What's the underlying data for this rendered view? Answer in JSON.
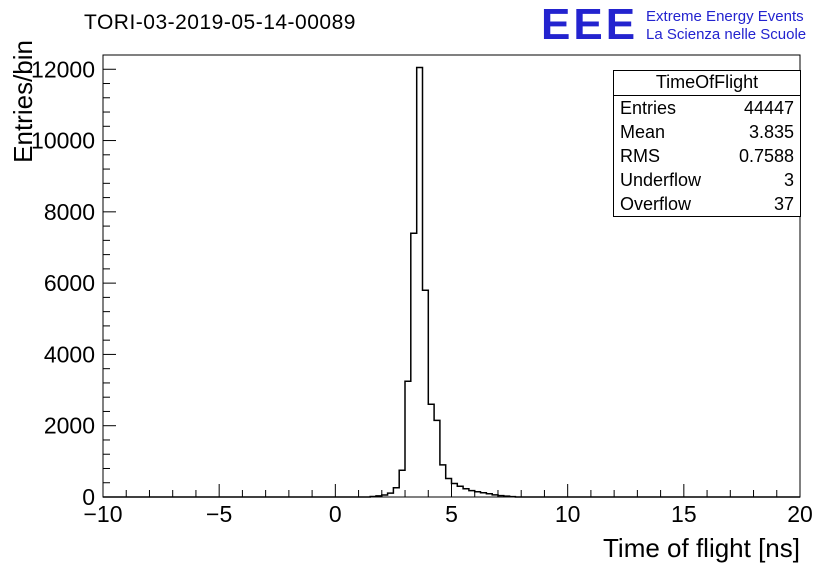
{
  "title": "TORI-03-2019-05-14-00089",
  "logo": {
    "text": "EEE",
    "line1": "Extreme Energy Events",
    "line2": "La Scienza nelle Scuole",
    "color": "#2323cf"
  },
  "stats": {
    "title": "TimeOfFlight",
    "rows": [
      {
        "label": "Entries",
        "value": "44447"
      },
      {
        "label": "Mean",
        "value": "3.835"
      },
      {
        "label": "RMS",
        "value": "0.7588"
      },
      {
        "label": "Underflow",
        "value": "3"
      },
      {
        "label": "Overflow",
        "value": "37"
      }
    ]
  },
  "chart_data": {
    "type": "bar",
    "title": "TORI-03-2019-05-14-00089",
    "xlabel": "Time of flight [ns]",
    "ylabel": "Entries/bin",
    "xlim": [
      -10,
      20
    ],
    "ylim": [
      0,
      12400
    ],
    "x_ticks": [
      -10,
      -5,
      0,
      5,
      10,
      15,
      20
    ],
    "x_tick_labels": [
      "−10",
      "−5",
      "0",
      "5",
      "10",
      "15",
      "20"
    ],
    "x_minor_step": 1,
    "y_ticks": [
      0,
      2000,
      4000,
      6000,
      8000,
      10000,
      12000
    ],
    "y_tick_labels": [
      "0",
      "2000",
      "4000",
      "6000",
      "8000",
      "10000",
      "12000"
    ],
    "y_minor_step": 400,
    "bin_width": 0.25,
    "bins": [
      [
        1.5,
        15
      ],
      [
        1.75,
        30
      ],
      [
        2.0,
        55
      ],
      [
        2.25,
        110
      ],
      [
        2.5,
        260
      ],
      [
        2.75,
        750
      ],
      [
        3.0,
        3250
      ],
      [
        3.25,
        7400
      ],
      [
        3.5,
        12050
      ],
      [
        3.75,
        5800
      ],
      [
        4.0,
        2600
      ],
      [
        4.25,
        2150
      ],
      [
        4.5,
        900
      ],
      [
        4.75,
        520
      ],
      [
        5.0,
        380
      ],
      [
        5.25,
        300
      ],
      [
        5.5,
        230
      ],
      [
        5.75,
        180
      ],
      [
        6.0,
        150
      ],
      [
        6.25,
        120
      ],
      [
        6.5,
        90
      ],
      [
        6.75,
        60
      ],
      [
        7.0,
        40
      ],
      [
        7.25,
        25
      ],
      [
        7.5,
        10
      ]
    ],
    "line_color": "#000000",
    "background": "#ffffff",
    "grid": false,
    "legend_position": "none"
  }
}
